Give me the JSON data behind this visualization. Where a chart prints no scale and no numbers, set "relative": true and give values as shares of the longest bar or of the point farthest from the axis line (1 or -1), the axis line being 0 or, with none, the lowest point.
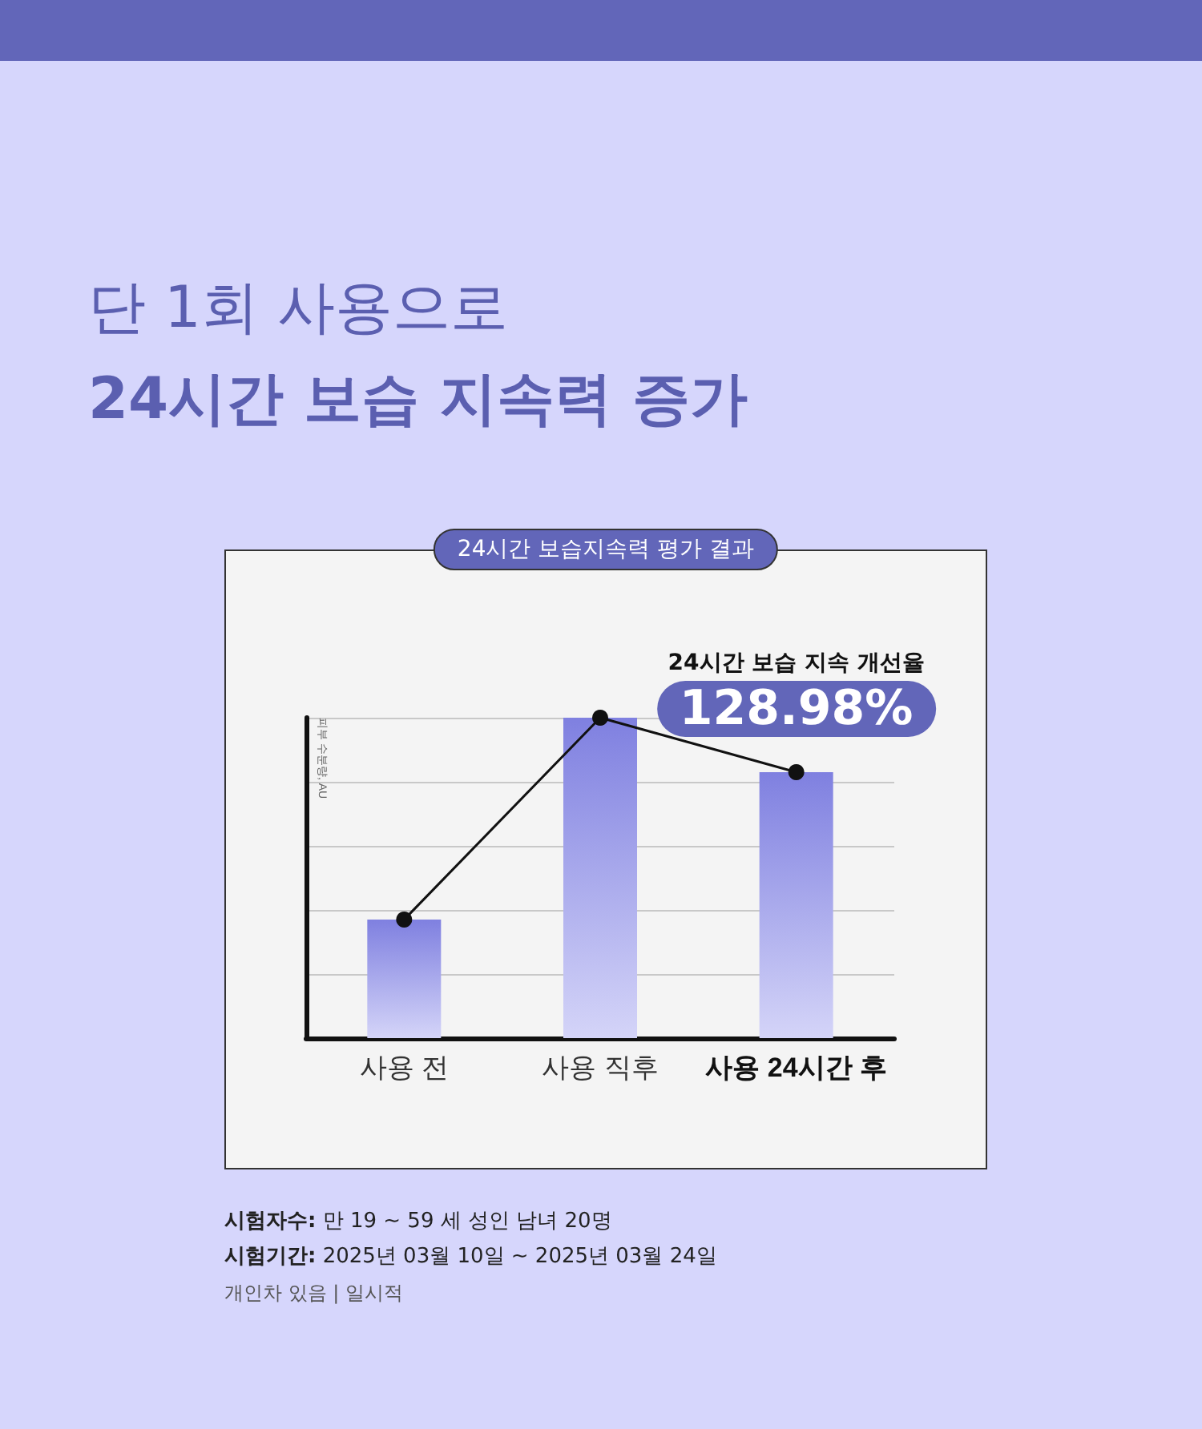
{
  "chart_data": {
    "type": "bar",
    "title": "단 1회 사용으로",
    "subtitle": "24시간 보습 지속력 증가",
    "ylabel": "피부 수분량, AU",
    "categories": [
      "사용 전",
      "사용 직후",
      "사용 24시간 후"
    ],
    "relative": true,
    "grid": "y",
    "series": [
      {
        "color": "#7f80e0",
        "values": [
          0.37,
          1,
          0.83
        ]
      },
      {
        "type": "line",
        "color": "#111111",
        "marker": "circle",
        "line_style": "solid",
        "values": [
          0.37,
          1,
          0.83
        ]
      }
    ],
    "annotations": [
      "24시간 보습지속력 평가 결과",
      {
        "text": "24시간 보습 지속 개선율\n128.98%",
        "x": "사용 24시간 후",
        "y": 0.83
      },
      "시험자수: 만 19 ~ 59 세 성인 남녀 20명",
      "시험기간: 2025년 03월 10일 ~ 2025년 03월 24일",
      "개인차 있음 | 일시적"
    ]
  }
}
